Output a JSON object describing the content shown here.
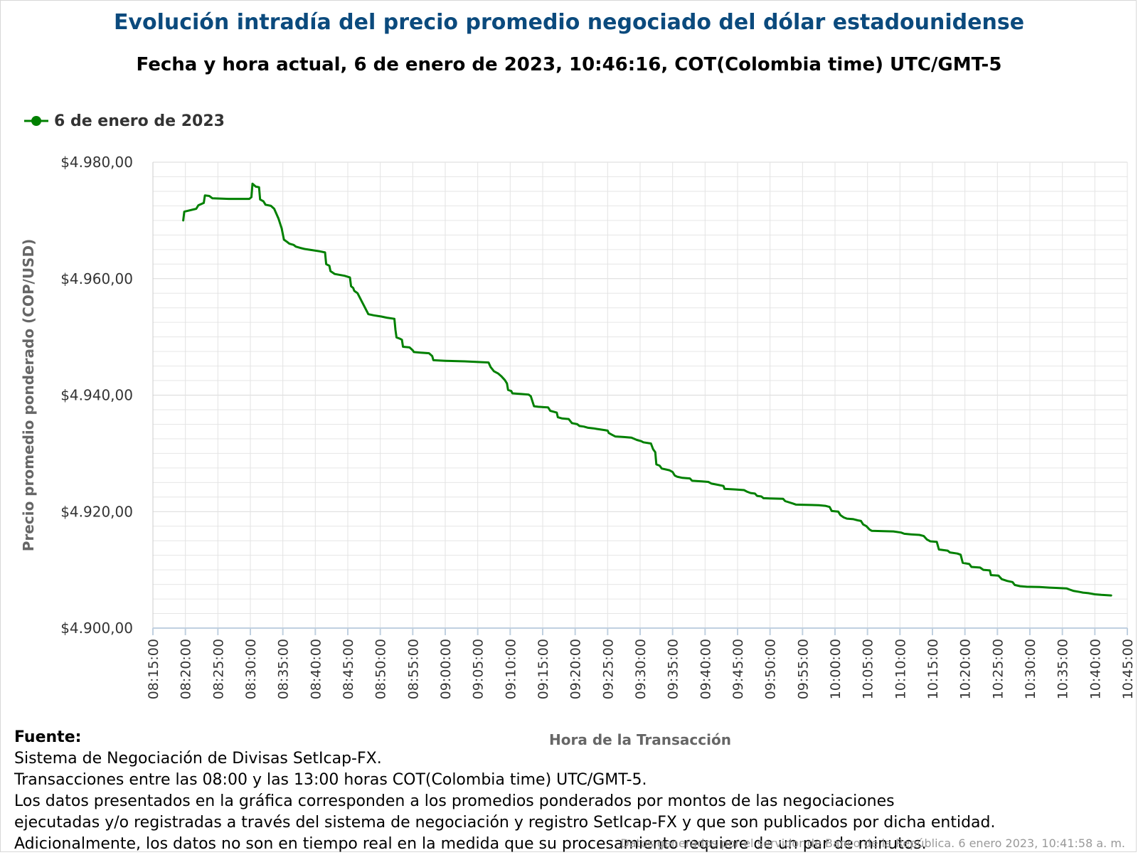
{
  "title": "Evolución intradía del precio promedio negociado del dólar estadounidense",
  "subtitle": "Fecha y hora actual, 6 de enero de 2023, 10:46:16, COT(Colombia time) UTC/GMT-5",
  "colors": {
    "title": "#0b4a7d",
    "series": "#008000",
    "grid": "#e6e6e6",
    "axis": "#c0d0e0",
    "axis_title": "#666666"
  },
  "source": {
    "title": "Fuente:",
    "lines": [
      "Sistema de Negociación de Divisas SetIcap-FX.",
      "Transacciones entre las 08:00 y las 13:00 horas COT(Colombia time) UTC/GMT-5.",
      "Los datos presentados en la gráfica corresponden a los promedios ponderados por montos de las negociaciones",
      "ejecutadas y/o registradas a través del sistema de negociación y registro SetIcap-FX y que son publicados por dicha entidad.",
      "Adicionalmente, los datos no son en tiempo real en la medida que su procesamiento requiere de un par de minutos."
    ]
  },
  "credits": "Datos generados por el servidor de Banco de la República. 6 enero 2023, 10:41:58 a. m.",
  "chart_data": {
    "type": "line",
    "xlabel": "Hora de la Transacción",
    "ylabel": "Precio promedio ponderado (COP/USD)",
    "xlim": [
      "08:15:00",
      "10:45:00"
    ],
    "ylim": [
      4900,
      4980
    ],
    "grid": true,
    "legend_position": "top-left",
    "x_ticks": [
      "08:15:00",
      "08:20:00",
      "08:25:00",
      "08:30:00",
      "08:35:00",
      "08:40:00",
      "08:45:00",
      "08:50:00",
      "08:55:00",
      "09:00:00",
      "09:05:00",
      "09:10:00",
      "09:15:00",
      "09:20:00",
      "09:25:00",
      "09:30:00",
      "09:35:00",
      "09:40:00",
      "09:45:00",
      "09:50:00",
      "09:55:00",
      "10:00:00",
      "10:05:00",
      "10:10:00",
      "10:15:00",
      "10:20:00",
      "10:25:00",
      "10:30:00",
      "10:35:00",
      "10:40:00",
      "10:45:00"
    ],
    "y_ticks": [
      {
        "value": 4900,
        "label": "$4.900,00"
      },
      {
        "value": 4920,
        "label": "$4.920,00"
      },
      {
        "value": 4940,
        "label": "$4.940,00"
      },
      {
        "value": 4960,
        "label": "$4.960,00"
      },
      {
        "value": 4980,
        "label": "$4.980,00"
      }
    ],
    "series": [
      {
        "name": "6 de enero de 2023",
        "points": [
          [
            "08:19:40",
            4970.0
          ],
          [
            "08:19:50",
            4971.5
          ],
          [
            "08:21:40",
            4972.0
          ],
          [
            "08:22:00",
            4972.6
          ],
          [
            "08:22:50",
            4973.0
          ],
          [
            "08:23:00",
            4974.3
          ],
          [
            "08:23:40",
            4974.2
          ],
          [
            "08:24:10",
            4973.8
          ],
          [
            "08:26:40",
            4973.7
          ],
          [
            "08:29:50",
            4973.7
          ],
          [
            "08:30:10",
            4974.0
          ],
          [
            "08:30:20",
            4976.3
          ],
          [
            "08:30:50",
            4975.8
          ],
          [
            "08:31:20",
            4975.7
          ],
          [
            "08:31:30",
            4973.6
          ],
          [
            "08:32:00",
            4973.3
          ],
          [
            "08:32:20",
            4972.7
          ],
          [
            "08:33:10",
            4972.5
          ],
          [
            "08:33:40",
            4972.0
          ],
          [
            "08:34:20",
            4970.3
          ],
          [
            "08:34:50",
            4968.6
          ],
          [
            "08:35:10",
            4966.7
          ],
          [
            "08:35:40",
            4966.3
          ],
          [
            "08:36:00",
            4966.0
          ],
          [
            "08:36:40",
            4965.8
          ],
          [
            "08:37:00",
            4965.5
          ],
          [
            "08:37:40",
            4965.3
          ],
          [
            "08:38:20",
            4965.1
          ],
          [
            "08:39:30",
            4964.9
          ],
          [
            "08:40:40",
            4964.7
          ],
          [
            "08:41:30",
            4964.5
          ],
          [
            "08:41:40",
            4962.5
          ],
          [
            "08:42:10",
            4962.2
          ],
          [
            "08:42:20",
            4961.3
          ],
          [
            "08:43:00",
            4960.8
          ],
          [
            "08:44:30",
            4960.5
          ],
          [
            "08:45:20",
            4960.2
          ],
          [
            "08:45:30",
            4958.7
          ],
          [
            "08:45:50",
            4958.4
          ],
          [
            "08:46:00",
            4957.9
          ],
          [
            "08:46:30",
            4957.5
          ],
          [
            "08:48:10",
            4953.9
          ],
          [
            "08:49:00",
            4953.7
          ],
          [
            "08:50:10",
            4953.5
          ],
          [
            "08:51:00",
            4953.3
          ],
          [
            "08:52:10",
            4953.1
          ],
          [
            "08:52:20",
            4951.2
          ],
          [
            "08:52:30",
            4949.9
          ],
          [
            "08:53:00",
            4949.7
          ],
          [
            "08:53:20",
            4949.5
          ],
          [
            "08:53:30",
            4948.3
          ],
          [
            "08:54:30",
            4948.2
          ],
          [
            "08:55:00",
            4947.7
          ],
          [
            "08:55:10",
            4947.4
          ],
          [
            "08:56:10",
            4947.3
          ],
          [
            "08:57:30",
            4947.2
          ],
          [
            "08:58:00",
            4946.7
          ],
          [
            "08:58:10",
            4946.0
          ],
          [
            "09:00:00",
            4945.9
          ],
          [
            "09:03:00",
            4945.8
          ],
          [
            "09:06:40",
            4945.6
          ],
          [
            "09:07:00",
            4944.8
          ],
          [
            "09:07:30",
            4944.1
          ],
          [
            "09:08:10",
            4943.7
          ],
          [
            "09:08:40",
            4943.2
          ],
          [
            "09:09:10",
            4942.6
          ],
          [
            "09:09:30",
            4942.0
          ],
          [
            "09:09:40",
            4940.9
          ],
          [
            "09:10:10",
            4940.7
          ],
          [
            "09:10:20",
            4940.3
          ],
          [
            "09:11:40",
            4940.2
          ],
          [
            "09:12:50",
            4940.1
          ],
          [
            "09:13:10",
            4939.8
          ],
          [
            "09:13:40",
            4938.1
          ],
          [
            "09:14:20",
            4938.0
          ],
          [
            "09:15:50",
            4937.9
          ],
          [
            "09:16:10",
            4937.3
          ],
          [
            "09:17:10",
            4937.0
          ],
          [
            "09:17:20",
            4936.2
          ],
          [
            "09:18:00",
            4936.0
          ],
          [
            "09:19:00",
            4935.9
          ],
          [
            "09:19:30",
            4935.2
          ],
          [
            "09:20:20",
            4935.0
          ],
          [
            "09:20:40",
            4934.7
          ],
          [
            "09:21:20",
            4934.6
          ],
          [
            "09:22:00",
            4934.4
          ],
          [
            "09:22:50",
            4934.3
          ],
          [
            "09:23:20",
            4934.2
          ],
          [
            "09:24:30",
            4934.0
          ],
          [
            "09:25:00",
            4933.9
          ],
          [
            "09:25:10",
            4933.5
          ],
          [
            "09:25:40",
            4933.2
          ],
          [
            "09:26:10",
            4932.9
          ],
          [
            "09:27:30",
            4932.8
          ],
          [
            "09:28:40",
            4932.7
          ],
          [
            "09:29:30",
            4932.3
          ],
          [
            "09:30:10",
            4932.1
          ],
          [
            "09:30:30",
            4931.9
          ],
          [
            "09:31:40",
            4931.7
          ],
          [
            "09:32:00",
            4930.7
          ],
          [
            "09:32:20",
            4930.2
          ],
          [
            "09:32:30",
            4928.1
          ],
          [
            "09:33:00",
            4927.9
          ],
          [
            "09:33:20",
            4927.4
          ],
          [
            "09:34:30",
            4927.1
          ],
          [
            "09:35:00",
            4926.8
          ],
          [
            "09:35:20",
            4926.2
          ],
          [
            "09:35:40",
            4926.0
          ],
          [
            "09:36:30",
            4925.8
          ],
          [
            "09:37:40",
            4925.7
          ],
          [
            "09:38:00",
            4925.3
          ],
          [
            "09:39:30",
            4925.2
          ],
          [
            "09:40:30",
            4925.1
          ],
          [
            "09:41:00",
            4924.8
          ],
          [
            "09:42:00",
            4924.6
          ],
          [
            "09:42:50",
            4924.4
          ],
          [
            "09:43:00",
            4923.9
          ],
          [
            "09:44:40",
            4923.8
          ],
          [
            "09:46:00",
            4923.7
          ],
          [
            "09:46:30",
            4923.4
          ],
          [
            "09:47:00",
            4923.2
          ],
          [
            "09:47:40",
            4923.1
          ],
          [
            "09:48:00",
            4922.7
          ],
          [
            "09:48:40",
            4922.6
          ],
          [
            "09:49:00",
            4922.3
          ],
          [
            "09:50:00",
            4922.25
          ],
          [
            "09:52:00",
            4922.2
          ],
          [
            "09:52:20",
            4921.8
          ],
          [
            "09:53:30",
            4921.4
          ],
          [
            "09:54:00",
            4921.2
          ],
          [
            "09:55:30",
            4921.15
          ],
          [
            "09:57:30",
            4921.1
          ],
          [
            "09:58:30",
            4921.0
          ],
          [
            "09:59:10",
            4920.8
          ],
          [
            "09:59:30",
            4920.1
          ],
          [
            "10:00:30",
            4920.0
          ],
          [
            "10:00:50",
            4919.4
          ],
          [
            "10:01:20",
            4919.0
          ],
          [
            "10:01:50",
            4918.8
          ],
          [
            "10:02:50",
            4918.7
          ],
          [
            "10:03:30",
            4918.5
          ],
          [
            "10:04:00",
            4918.4
          ],
          [
            "10:04:20",
            4917.8
          ],
          [
            "10:04:50",
            4917.5
          ],
          [
            "10:05:20",
            4916.9
          ],
          [
            "10:05:40",
            4916.7
          ],
          [
            "10:07:30",
            4916.65
          ],
          [
            "10:09:00",
            4916.6
          ],
          [
            "10:10:10",
            4916.4
          ],
          [
            "10:10:40",
            4916.2
          ],
          [
            "10:11:40",
            4916.1
          ],
          [
            "10:13:00",
            4916.0
          ],
          [
            "10:13:40",
            4915.8
          ],
          [
            "10:14:10",
            4915.2
          ],
          [
            "10:14:40",
            4914.9
          ],
          [
            "10:15:40",
            4914.8
          ],
          [
            "10:16:00",
            4913.5
          ],
          [
            "10:17:20",
            4913.3
          ],
          [
            "10:17:40",
            4913.0
          ],
          [
            "10:18:50",
            4912.8
          ],
          [
            "10:19:20",
            4912.6
          ],
          [
            "10:19:40",
            4911.2
          ],
          [
            "10:20:40",
            4911.0
          ],
          [
            "10:21:00",
            4910.5
          ],
          [
            "10:22:20",
            4910.4
          ],
          [
            "10:22:50",
            4910.0
          ],
          [
            "10:23:50",
            4909.9
          ],
          [
            "10:24:00",
            4909.1
          ],
          [
            "10:25:10",
            4909.0
          ],
          [
            "10:25:40",
            4908.4
          ],
          [
            "10:26:30",
            4908.1
          ],
          [
            "10:27:20",
            4907.9
          ],
          [
            "10:27:40",
            4907.4
          ],
          [
            "10:28:30",
            4907.2
          ],
          [
            "10:29:30",
            4907.1
          ],
          [
            "10:31:30",
            4907.05
          ],
          [
            "10:33:00",
            4906.95
          ],
          [
            "10:34:00",
            4906.9
          ],
          [
            "10:35:40",
            4906.8
          ],
          [
            "10:36:10",
            4906.6
          ],
          [
            "10:36:40",
            4906.4
          ],
          [
            "10:37:40",
            4906.2
          ],
          [
            "10:38:10",
            4906.1
          ],
          [
            "10:39:00",
            4906.0
          ],
          [
            "10:40:00",
            4905.8
          ],
          [
            "10:41:00",
            4905.7
          ],
          [
            "10:42:30",
            4905.6
          ]
        ]
      }
    ]
  }
}
